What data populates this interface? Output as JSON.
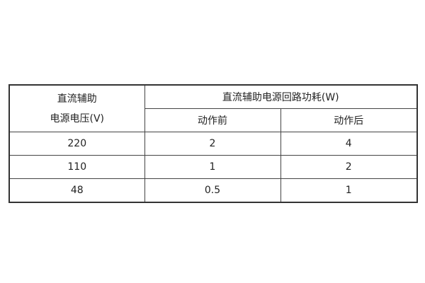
{
  "table": {
    "header": {
      "col1_line1": "直流辅助",
      "col1_line2": "电源电压(V)",
      "group": "直流辅助电源回路功耗(W)",
      "sub": [
        "动作前",
        "动作后"
      ]
    },
    "rows": [
      [
        "220",
        "2",
        "4"
      ],
      [
        "110",
        "1",
        "2"
      ],
      [
        "48",
        "0.5",
        "1"
      ]
    ]
  }
}
